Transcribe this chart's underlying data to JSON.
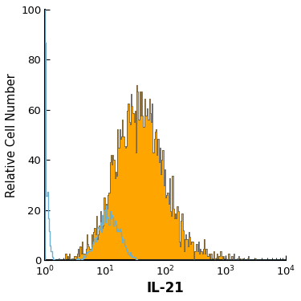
{
  "title": "",
  "xlabel": "IL-21",
  "ylabel": "Relative Cell Number",
  "xlim_log": [
    1,
    10000
  ],
  "ylim": [
    0,
    100
  ],
  "yticks": [
    0,
    20,
    40,
    60,
    80,
    100
  ],
  "xlabel_fontsize": 12,
  "ylabel_fontsize": 10.5,
  "tick_fontsize": 9.5,
  "filled_color": "#FFA500",
  "filled_edge_color": "#4a4a4a",
  "open_color": "#6aafd4",
  "background_color": "#ffffff",
  "xlabel_bold": true,
  "seed": 12345,
  "iso_peak_log": 1.05,
  "iso_scale": 0.18,
  "iso_n": 4000,
  "iso_max": 87,
  "filled_peak_log": 1.55,
  "filled_scale": 0.38,
  "filled_n": 4000,
  "filled_max": 70,
  "n_bins": 250
}
